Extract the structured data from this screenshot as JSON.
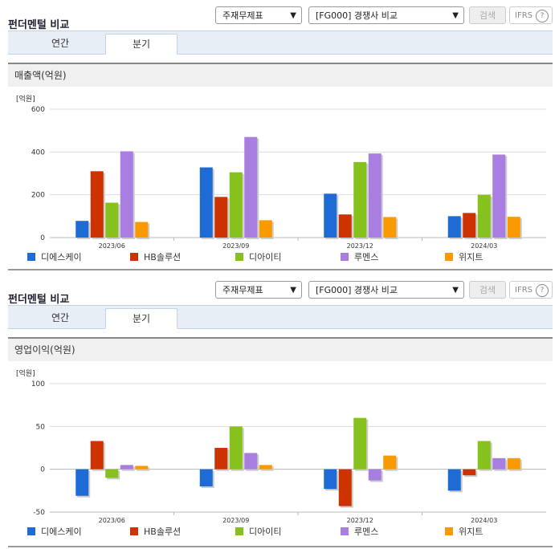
{
  "panels": [
    {
      "title": "펀더멘털 비교",
      "select1": "주재무제표",
      "select2": "[FG000] 경쟁사 비교",
      "search_label": "검색",
      "ifrs_label": "IFRS",
      "tabs": [
        {
          "label": "연간"
        },
        {
          "label": "분기"
        }
      ],
      "active_tab": 1,
      "chart_title": "매출액(억원)"
    },
    {
      "title": "펀더멘털 비교",
      "select1": "주재무제표",
      "select2": "[FG000] 경쟁사 비교",
      "search_label": "검색",
      "ifrs_label": "IFRS",
      "tabs": [
        {
          "label": "연간"
        },
        {
          "label": "분기"
        }
      ],
      "active_tab": 1,
      "chart_title": "영업이익(억원)"
    }
  ],
  "chart_data": [
    {
      "type": "bar",
      "unit": "[억원]",
      "categories": [
        "2023/06",
        "2023/09",
        "2023/12",
        "2024/03"
      ],
      "yticks": [
        0,
        200,
        400,
        600
      ],
      "ylim": [
        0,
        600
      ],
      "grid": true,
      "legend_position": "bottom",
      "series": [
        {
          "name": "디에스케이",
          "color": "#1f6bd6",
          "values": [
            78,
            328,
            205,
            100
          ]
        },
        {
          "name": "HB솔루션",
          "color": "#cc3300",
          "values": [
            310,
            190,
            108,
            115
          ]
        },
        {
          "name": "디아이티",
          "color": "#86c11d",
          "values": [
            163,
            305,
            353,
            200
          ]
        },
        {
          "name": "루멘스",
          "color": "#a87fe0",
          "values": [
            403,
            470,
            393,
            388
          ]
        },
        {
          "name": "위지트",
          "color": "#f99a00",
          "values": [
            73,
            81,
            96,
            97
          ]
        }
      ]
    },
    {
      "type": "bar",
      "unit": "[억원]",
      "categories": [
        "2023/06",
        "2023/09",
        "2023/12",
        "2024/03"
      ],
      "yticks": [
        -50,
        0,
        50,
        100
      ],
      "ylim": [
        -50,
        100
      ],
      "grid": true,
      "legend_position": "bottom",
      "series": [
        {
          "name": "디에스케이",
          "color": "#1f6bd6",
          "values": [
            -31,
            -20,
            -23,
            -25
          ]
        },
        {
          "name": "HB솔루션",
          "color": "#cc3300",
          "values": [
            33,
            25,
            -43,
            -7
          ]
        },
        {
          "name": "디아이티",
          "color": "#86c11d",
          "values": [
            -10,
            50,
            60,
            33
          ]
        },
        {
          "name": "루멘스",
          "color": "#a87fe0",
          "values": [
            5,
            19,
            -13,
            13
          ]
        },
        {
          "name": "위지트",
          "color": "#f99a00",
          "values": [
            4,
            5,
            16,
            13
          ]
        }
      ]
    }
  ]
}
